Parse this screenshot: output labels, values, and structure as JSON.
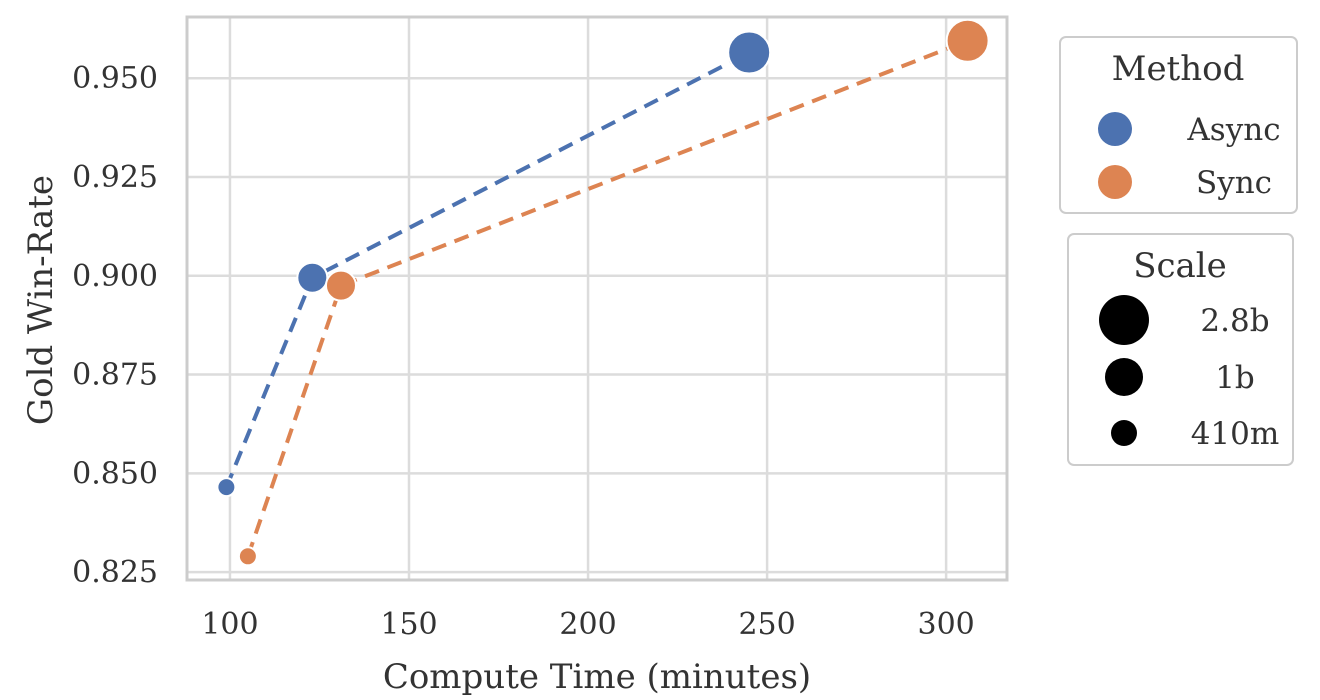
{
  "chart_data": {
    "type": "scatter",
    "xlabel": "Compute Time (minutes)",
    "ylabel": "Gold Win-Rate",
    "xlim": [
      88,
      317
    ],
    "ylim": [
      0.823,
      0.9655
    ],
    "xticks": [
      100,
      150,
      200,
      250,
      300
    ],
    "xtick_labels": [
      "100",
      "150",
      "200",
      "250",
      "300"
    ],
    "yticks": [
      0.825,
      0.85,
      0.875,
      0.9,
      0.925,
      0.95
    ],
    "ytick_labels": [
      "0.825",
      "0.850",
      "0.875",
      "0.900",
      "0.925",
      "0.950"
    ],
    "grid": true,
    "line_style": "dashed",
    "series": [
      {
        "name": "Async",
        "color": "#4c72b0",
        "points": [
          {
            "x": 99,
            "y": 0.8465,
            "scale": "410m"
          },
          {
            "x": 123,
            "y": 0.8995,
            "scale": "1b"
          },
          {
            "x": 245,
            "y": 0.9565,
            "scale": "2.8b"
          }
        ]
      },
      {
        "name": "Sync",
        "color": "#dd8452",
        "points": [
          {
            "x": 105,
            "y": 0.829,
            "scale": "410m"
          },
          {
            "x": 131,
            "y": 0.8975,
            "scale": "1b"
          },
          {
            "x": 306,
            "y": 0.9595,
            "scale": "2.8b"
          }
        ]
      }
    ],
    "legend": {
      "placement": "right",
      "method": {
        "title": "Method",
        "items": [
          {
            "label": "Async",
            "color": "#4c72b0"
          },
          {
            "label": "Sync",
            "color": "#dd8452"
          }
        ]
      },
      "scale": {
        "title": "Scale",
        "items": [
          {
            "label": "2.8b",
            "size": "2.8b"
          },
          {
            "label": "1b",
            "size": "1b"
          },
          {
            "label": "410m",
            "size": "410m"
          }
        ]
      }
    }
  }
}
